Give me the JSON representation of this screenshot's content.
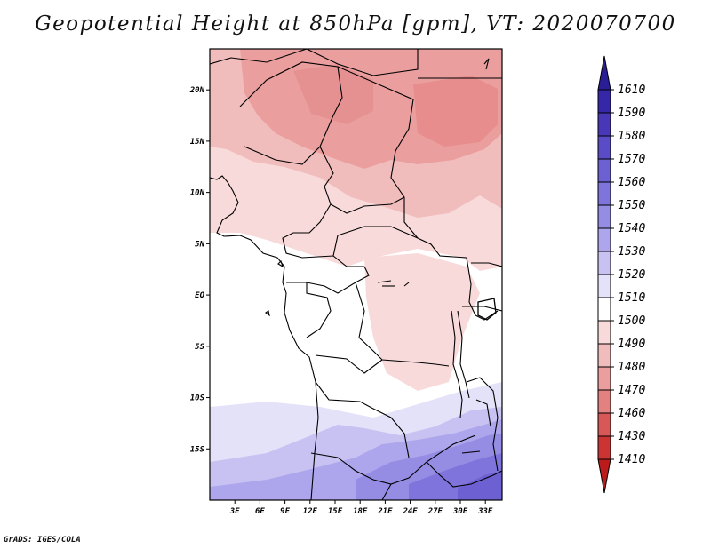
{
  "title": "Geopotential Height at 850hPa [gpm], VT: 2020070700",
  "footer": "GrADS: IGES/COLA",
  "map": {
    "lon_range": [
      0,
      35
    ],
    "lat_range": [
      -20,
      24
    ],
    "x_ticks": [
      "3E",
      "6E",
      "9E",
      "12E",
      "15E",
      "18E",
      "21E",
      "24E",
      "27E",
      "30E",
      "33E"
    ],
    "y_ticks": [
      "20N",
      "15N",
      "10N",
      "5N",
      "EQ",
      "5S",
      "10S",
      "15S"
    ]
  },
  "colorbar": {
    "levels": [
      "1610",
      "1590",
      "1580",
      "1570",
      "1560",
      "1550",
      "1540",
      "1530",
      "1520",
      "1510",
      "1500",
      "1490",
      "1480",
      "1470",
      "1460",
      "1430",
      "1410"
    ],
    "colors": [
      "#2a1e96",
      "#3626a8",
      "#4838b8",
      "#5a4cc6",
      "#6c60d2",
      "#7e74dc",
      "#958ce4",
      "#ada6ec",
      "#c7c2f2",
      "#e4e2f8",
      "#ffffff",
      "#f8dada",
      "#f1bcbc",
      "#ea9e9e",
      "#e38080",
      "#d85858",
      "#cc3434",
      "#bb1b1b"
    ]
  }
}
